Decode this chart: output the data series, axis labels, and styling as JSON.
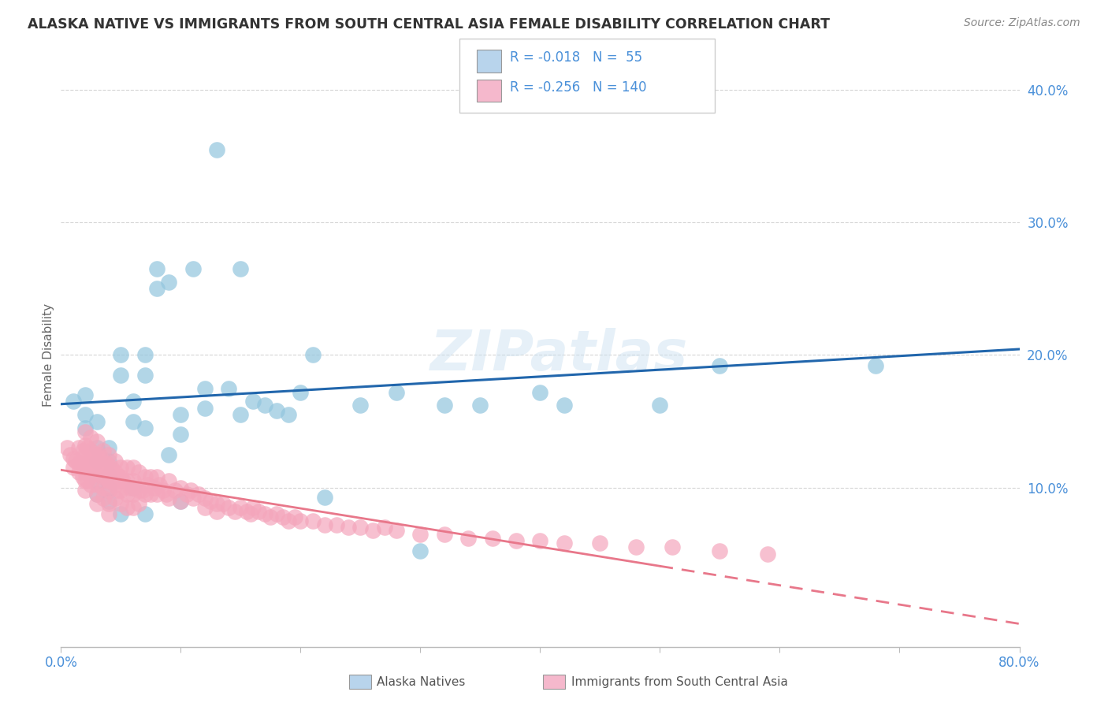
{
  "title": "ALASKA NATIVE VS IMMIGRANTS FROM SOUTH CENTRAL ASIA FEMALE DISABILITY CORRELATION CHART",
  "source": "Source: ZipAtlas.com",
  "ylabel": "Female Disability",
  "xlim": [
    0.0,
    0.8
  ],
  "ylim": [
    -0.02,
    0.42
  ],
  "watermark": "ZIPatlas",
  "color_blue": "#92c5de",
  "color_pink": "#f4a6bc",
  "trendline_blue_color": "#2166ac",
  "trendline_pink_color": "#e8778a",
  "background_color": "#ffffff",
  "grid_color": "#cccccc",
  "axis_label_color": "#4a90d9",
  "ylabel_color": "#666666",
  "title_color": "#333333",
  "source_color": "#888888",
  "legend_r1": "R = -0.018",
  "legend_n1": "N =  55",
  "legend_r2": "R = -0.256",
  "legend_n2": "N = 140",
  "alaska_x": [
    0.01,
    0.02,
    0.02,
    0.02,
    0.03,
    0.03,
    0.03,
    0.03,
    0.03,
    0.04,
    0.04,
    0.04,
    0.04,
    0.04,
    0.05,
    0.05,
    0.05,
    0.06,
    0.06,
    0.06,
    0.07,
    0.07,
    0.07,
    0.07,
    0.08,
    0.08,
    0.09,
    0.09,
    0.1,
    0.1,
    0.1,
    0.11,
    0.12,
    0.12,
    0.13,
    0.14,
    0.15,
    0.15,
    0.16,
    0.17,
    0.18,
    0.19,
    0.2,
    0.21,
    0.22,
    0.25,
    0.28,
    0.3,
    0.32,
    0.35,
    0.4,
    0.42,
    0.5,
    0.55,
    0.68
  ],
  "alaska_y": [
    0.165,
    0.17,
    0.155,
    0.145,
    0.15,
    0.13,
    0.12,
    0.105,
    0.095,
    0.13,
    0.12,
    0.11,
    0.1,
    0.09,
    0.2,
    0.185,
    0.08,
    0.165,
    0.15,
    0.1,
    0.2,
    0.185,
    0.145,
    0.08,
    0.265,
    0.25,
    0.255,
    0.125,
    0.155,
    0.14,
    0.09,
    0.265,
    0.175,
    0.16,
    0.355,
    0.175,
    0.265,
    0.155,
    0.165,
    0.162,
    0.158,
    0.155,
    0.172,
    0.2,
    0.093,
    0.162,
    0.172,
    0.052,
    0.162,
    0.162,
    0.172,
    0.162,
    0.162,
    0.192,
    0.192
  ],
  "imm_x": [
    0.005,
    0.008,
    0.01,
    0.01,
    0.012,
    0.015,
    0.015,
    0.015,
    0.018,
    0.018,
    0.018,
    0.02,
    0.02,
    0.02,
    0.02,
    0.02,
    0.02,
    0.02,
    0.022,
    0.022,
    0.022,
    0.022,
    0.025,
    0.025,
    0.025,
    0.025,
    0.025,
    0.028,
    0.028,
    0.03,
    0.03,
    0.03,
    0.03,
    0.03,
    0.03,
    0.03,
    0.032,
    0.032,
    0.035,
    0.035,
    0.035,
    0.035,
    0.035,
    0.038,
    0.038,
    0.04,
    0.04,
    0.04,
    0.04,
    0.04,
    0.04,
    0.042,
    0.042,
    0.045,
    0.045,
    0.045,
    0.045,
    0.048,
    0.048,
    0.05,
    0.05,
    0.05,
    0.05,
    0.052,
    0.055,
    0.055,
    0.055,
    0.055,
    0.058,
    0.06,
    0.06,
    0.06,
    0.06,
    0.062,
    0.065,
    0.065,
    0.065,
    0.068,
    0.07,
    0.07,
    0.072,
    0.075,
    0.075,
    0.078,
    0.08,
    0.08,
    0.082,
    0.085,
    0.088,
    0.09,
    0.09,
    0.095,
    0.1,
    0.1,
    0.105,
    0.108,
    0.11,
    0.115,
    0.12,
    0.12,
    0.125,
    0.13,
    0.13,
    0.135,
    0.14,
    0.145,
    0.15,
    0.155,
    0.158,
    0.16,
    0.165,
    0.17,
    0.175,
    0.18,
    0.185,
    0.19,
    0.195,
    0.2,
    0.21,
    0.22,
    0.23,
    0.24,
    0.25,
    0.26,
    0.27,
    0.28,
    0.3,
    0.32,
    0.34,
    0.36,
    0.38,
    0.4,
    0.42,
    0.45,
    0.48,
    0.51,
    0.55,
    0.59
  ],
  "imm_y": [
    0.13,
    0.125,
    0.122,
    0.115,
    0.12,
    0.13,
    0.118,
    0.112,
    0.128,
    0.118,
    0.108,
    0.142,
    0.132,
    0.125,
    0.118,
    0.112,
    0.105,
    0.098,
    0.13,
    0.12,
    0.112,
    0.105,
    0.138,
    0.128,
    0.118,
    0.11,
    0.102,
    0.125,
    0.115,
    0.135,
    0.125,
    0.118,
    0.11,
    0.102,
    0.095,
    0.088,
    0.125,
    0.115,
    0.128,
    0.118,
    0.108,
    0.1,
    0.092,
    0.118,
    0.108,
    0.125,
    0.115,
    0.105,
    0.098,
    0.088,
    0.08,
    0.115,
    0.105,
    0.12,
    0.112,
    0.102,
    0.092,
    0.108,
    0.098,
    0.115,
    0.108,
    0.098,
    0.088,
    0.105,
    0.115,
    0.105,
    0.095,
    0.085,
    0.1,
    0.115,
    0.105,
    0.095,
    0.085,
    0.1,
    0.112,
    0.098,
    0.088,
    0.098,
    0.108,
    0.095,
    0.102,
    0.108,
    0.095,
    0.1,
    0.108,
    0.095,
    0.102,
    0.098,
    0.095,
    0.105,
    0.092,
    0.098,
    0.1,
    0.09,
    0.095,
    0.098,
    0.092,
    0.095,
    0.092,
    0.085,
    0.09,
    0.088,
    0.082,
    0.088,
    0.085,
    0.082,
    0.085,
    0.082,
    0.08,
    0.085,
    0.082,
    0.08,
    0.078,
    0.08,
    0.078,
    0.075,
    0.078,
    0.075,
    0.075,
    0.072,
    0.072,
    0.07,
    0.07,
    0.068,
    0.07,
    0.068,
    0.065,
    0.065,
    0.062,
    0.062,
    0.06,
    0.06,
    0.058,
    0.058,
    0.055,
    0.055,
    0.052,
    0.05
  ]
}
